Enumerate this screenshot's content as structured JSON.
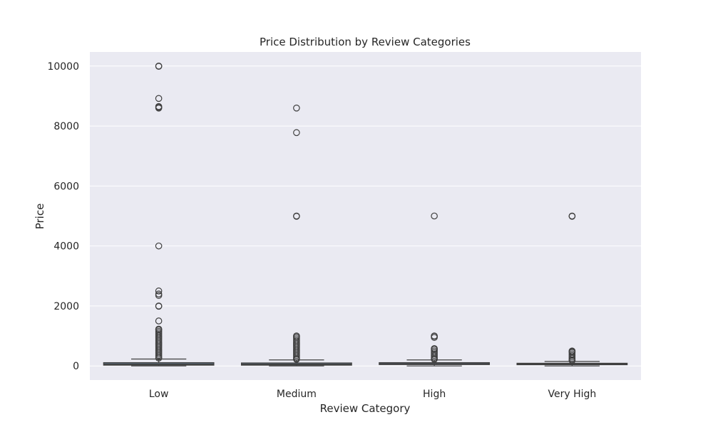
{
  "chart_data": {
    "type": "box",
    "title": "Price Distribution by Review Categories",
    "xlabel": "Review Category",
    "ylabel": "Price",
    "ylim": [
      -470,
      10470
    ],
    "yticks": [
      0,
      2000,
      4000,
      6000,
      8000,
      10000
    ],
    "grid": true,
    "legend": "none",
    "colors": {
      "background": "#EAEAF2",
      "grid": "#FFFFFF",
      "box_fill": "#5D6D7E",
      "line": "#3F3F3F"
    },
    "categories": [
      "Low",
      "Medium",
      "High",
      "Very High"
    ],
    "boxes": [
      {
        "category": "Low",
        "q1": 25,
        "median": 60,
        "q3": 110,
        "whisker_low": 0,
        "whisker_high": 230,
        "outliers": [
          10000,
          9990,
          8920,
          8650,
          8620,
          8600,
          4000,
          2500,
          2400,
          2350,
          2000,
          1990,
          1500,
          1230,
          1200,
          1150,
          1100,
          1050,
          1000,
          950,
          900,
          850,
          800,
          750,
          700,
          650,
          600,
          550,
          500,
          450,
          400,
          350,
          300,
          260
        ]
      },
      {
        "category": "Medium",
        "q1": 25,
        "median": 55,
        "q3": 100,
        "whisker_low": 0,
        "whisker_high": 200,
        "outliers": [
          8600,
          7780,
          5000,
          4990,
          1000,
          990,
          950,
          900,
          850,
          800,
          750,
          700,
          650,
          600,
          550,
          500,
          450,
          400,
          350,
          300,
          250,
          220
        ]
      },
      {
        "category": "High",
        "q1": 45,
        "median": 75,
        "q3": 110,
        "whisker_low": 0,
        "whisker_high": 200,
        "outliers": [
          5000,
          1000,
          990,
          950,
          580,
          550,
          500,
          450,
          400,
          350,
          300,
          250,
          220
        ]
      },
      {
        "category": "Very High",
        "q1": 40,
        "median": 65,
        "q3": 90,
        "whisker_low": 0,
        "whisker_high": 150,
        "outliers": [
          5000,
          4990,
          500,
          480,
          450,
          400,
          350,
          300,
          250,
          200,
          180
        ]
      }
    ]
  }
}
